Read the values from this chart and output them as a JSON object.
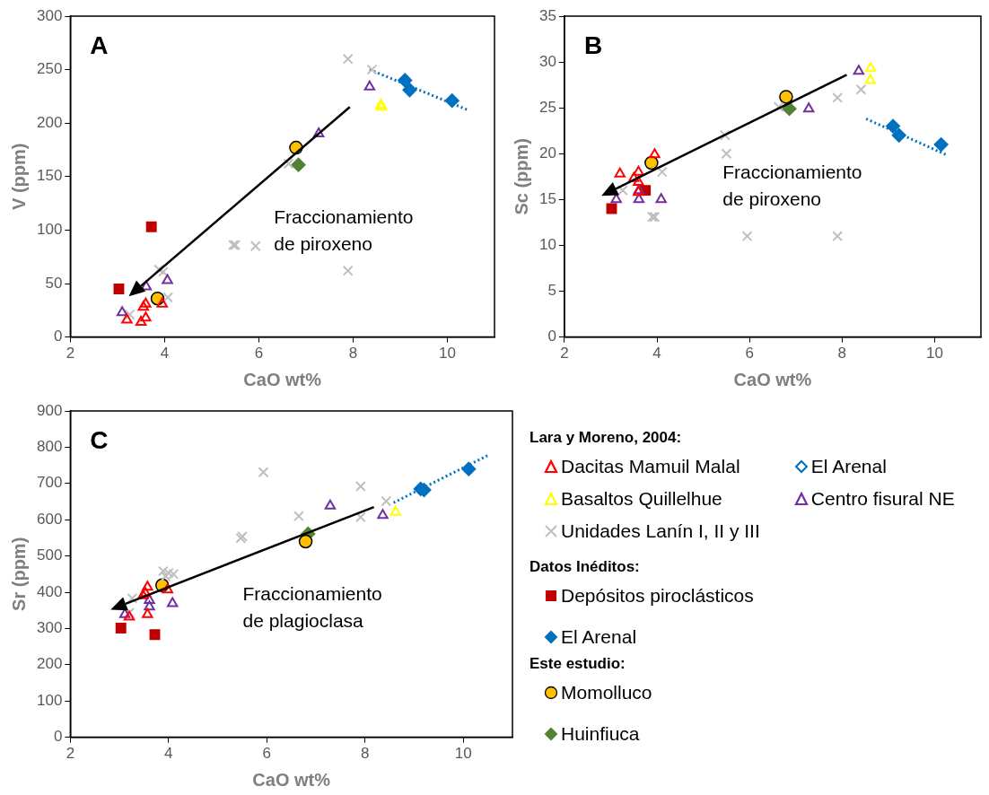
{
  "chart_data": [
    {
      "type": "scatter",
      "title": "A",
      "xlabel": "CaO wt%",
      "ylabel": "V (ppm)",
      "xlim": [
        2,
        11
      ],
      "xticks": [
        2,
        4,
        6,
        8,
        10
      ],
      "ylim": [
        0,
        300
      ],
      "yticks": [
        0,
        50,
        100,
        150,
        200,
        250,
        300
      ],
      "annotations": [
        "Fraccionamiento de piroxeno"
      ],
      "series": [
        {
          "color": "#ff0000",
          "marker": "triangle",
          "x": [
            3.2,
            3.5,
            3.6,
            3.55,
            3.6,
            3.95
          ],
          "values": [
            16,
            14,
            18,
            28,
            31,
            31
          ]
        },
        {
          "color": "#ffff00",
          "marker": "triangle",
          "x": [
            8.59,
            8.6
          ],
          "values": [
            217,
            215
          ]
        },
        {
          "color": "#7030a0",
          "marker": "triangle",
          "x": [
            3.1,
            3.61,
            4.06,
            7.27,
            8.35
          ],
          "values": [
            23,
            47,
            53,
            190,
            234
          ]
        },
        {
          "color": "#bfbfbf",
          "marker": "cross",
          "x": [
            7.89,
            8.4,
            6.63,
            5.46,
            5.5,
            5.93,
            7.89,
            3.88,
            3.97,
            4.07,
            3.26
          ],
          "values": [
            260,
            250,
            162,
            86,
            86,
            85,
            62,
            63,
            61,
            37,
            21
          ]
        },
        {
          "color": "#c00000",
          "marker": "square",
          "x": [
            3.03,
            3.72
          ],
          "values": [
            45,
            103
          ]
        },
        {
          "color": "#0070c0",
          "marker": "diamond",
          "x": [
            9.1,
            9.2,
            10.1
          ],
          "values": [
            240,
            231,
            221
          ]
        },
        {
          "color": "#ffc000",
          "marker": "circle",
          "x": [
            6.79,
            3.85
          ],
          "values": [
            177,
            36
          ]
        },
        {
          "color": "#548235",
          "marker": "diamond",
          "x": [
            6.84
          ],
          "values": [
            161
          ]
        },
        {
          "type": "line",
          "color": "#0070c0",
          "marker": "none",
          "line_style": "dotted",
          "x": [
            8.35,
            10.45
          ],
          "values": [
            250,
            212
          ]
        }
      ]
    },
    {
      "type": "scatter",
      "title": "B",
      "xlabel": "CaO wt%",
      "ylabel": "Sc (ppm)",
      "xlim": [
        2,
        11
      ],
      "xticks": [
        2,
        4,
        6,
        8,
        10
      ],
      "ylim": [
        0,
        35
      ],
      "yticks": [
        0,
        5,
        10,
        15,
        20,
        25,
        30,
        35
      ],
      "annotations": [
        "Fraccionamiento de piroxeno"
      ],
      "series": [
        {
          "color": "#ff0000",
          "marker": "triangle",
          "x": [
            3.2,
            3.5,
            3.6,
            3.6,
            3.6,
            3.95
          ],
          "values": [
            17.8,
            17.3,
            18,
            16.9,
            15.8,
            19.9
          ]
        },
        {
          "color": "#ffff00",
          "marker": "triangle",
          "x": [
            8.62,
            8.61
          ],
          "values": [
            29.3,
            28
          ]
        },
        {
          "color": "#7030a0",
          "marker": "triangle",
          "x": [
            3.12,
            3.61,
            3.61,
            4.09,
            7.28,
            8.36
          ],
          "values": [
            15,
            16,
            15,
            15,
            24.9,
            29
          ]
        },
        {
          "color": "#bfbfbf",
          "marker": "cross",
          "x": [
            3.26,
            4.11,
            3.9,
            3.95,
            5.47,
            5.5,
            5.95,
            6.63,
            7.9,
            8.41,
            7.9
          ],
          "values": [
            16,
            18,
            13.1,
            13.1,
            22,
            20,
            11,
            25.1,
            26.1,
            27,
            11
          ]
        },
        {
          "color": "#c00000",
          "marker": "square",
          "x": [
            3.02,
            3.75
          ],
          "values": [
            14,
            16
          ]
        },
        {
          "color": "#0070c0",
          "marker": "diamond",
          "x": [
            9.1,
            9.23,
            10.14
          ],
          "values": [
            23,
            22,
            21
          ]
        },
        {
          "color": "#ffc000",
          "marker": "circle",
          "x": [
            6.79,
            3.88
          ],
          "values": [
            26.2,
            19
          ]
        },
        {
          "color": "#548235",
          "marker": "diamond",
          "x": [
            6.86
          ],
          "values": [
            24.9
          ]
        },
        {
          "type": "line",
          "color": "#0070c0",
          "marker": "none",
          "line_style": "dotted",
          "x": [
            8.52,
            10.24
          ],
          "values": [
            23.8,
            19.9
          ]
        }
      ]
    },
    {
      "type": "scatter",
      "title": "C",
      "xlabel": "CaO wt%",
      "ylabel": "Sr (ppm)",
      "xlim": [
        2,
        11
      ],
      "xticks": [
        2,
        4,
        6,
        8,
        10
      ],
      "ylim": [
        0,
        900
      ],
      "yticks": [
        0,
        100,
        200,
        300,
        400,
        500,
        600,
        700,
        800,
        900
      ],
      "legend": "right",
      "annotations": [
        "Lara y Moreno, 2004:",
        "Datos Inéditos:",
        "Este estudio:",
        "Fraccionamiento de plagioclasa"
      ],
      "series": [
        {
          "name": "Dacitas Mamuil Malal",
          "color": "#ff0000",
          "marker": "triangle",
          "x": [
            3.57,
            3.53,
            3.48,
            3.57,
            3.2,
            3.98
          ],
          "values": [
            414,
            397,
            391,
            339,
            332,
            407
          ]
        },
        {
          "name": "El Arenal",
          "color": "#0070c0",
          "marker": "diamond"
        },
        {
          "name": "Basaltos Quillelhue",
          "color": "#ffff00",
          "marker": "triangle",
          "x": [
            8.62
          ],
          "values": [
            621
          ]
        },
        {
          "name": "Centro fisural NE",
          "color": "#7030a0",
          "marker": "triangle",
          "x": [
            3.11,
            3.61,
            3.61,
            4.08,
            7.29,
            8.36
          ],
          "values": [
            339,
            378,
            360,
            369,
            638,
            612
          ]
        },
        {
          "name": "Unidades Lanín I, II y III",
          "color": "#bfbfbf",
          "marker": "cross",
          "x": [
            3.26,
            3.2,
            3.89,
            4.0,
            4.1,
            3.94,
            5.47,
            5.5,
            5.93,
            6.65,
            7.91,
            7.91,
            8.43
          ],
          "values": [
            383,
            343,
            458,
            453,
            450,
            444,
            549,
            554,
            731,
            610,
            692,
            607,
            651
          ]
        },
        {
          "name": "Depósitos piroclásticos",
          "color": "#c00000",
          "marker": "square",
          "x": [
            3.03,
            3.72
          ],
          "values": [
            301,
            283
          ]
        },
        {
          "name": "El Arenal",
          "color": "#0070c0",
          "marker": "diamond",
          "x": [
            9.13,
            9.2,
            10.11
          ],
          "values": [
            685,
            682,
            740
          ]
        },
        {
          "name": "Momolluco",
          "color": "#ffc000",
          "marker": "circle",
          "x": [
            6.79,
            3.87
          ],
          "values": [
            540,
            419
          ]
        },
        {
          "name": "Huinfiuca",
          "color": "#548235",
          "marker": "diamond",
          "x": [
            6.84
          ],
          "values": [
            561
          ]
        },
        {
          "type": "line",
          "color": "#0070c0",
          "marker": "none",
          "line_style": "dotted",
          "x": [
            8.58,
            10.51
          ],
          "values": [
            647,
            778
          ]
        }
      ]
    }
  ]
}
